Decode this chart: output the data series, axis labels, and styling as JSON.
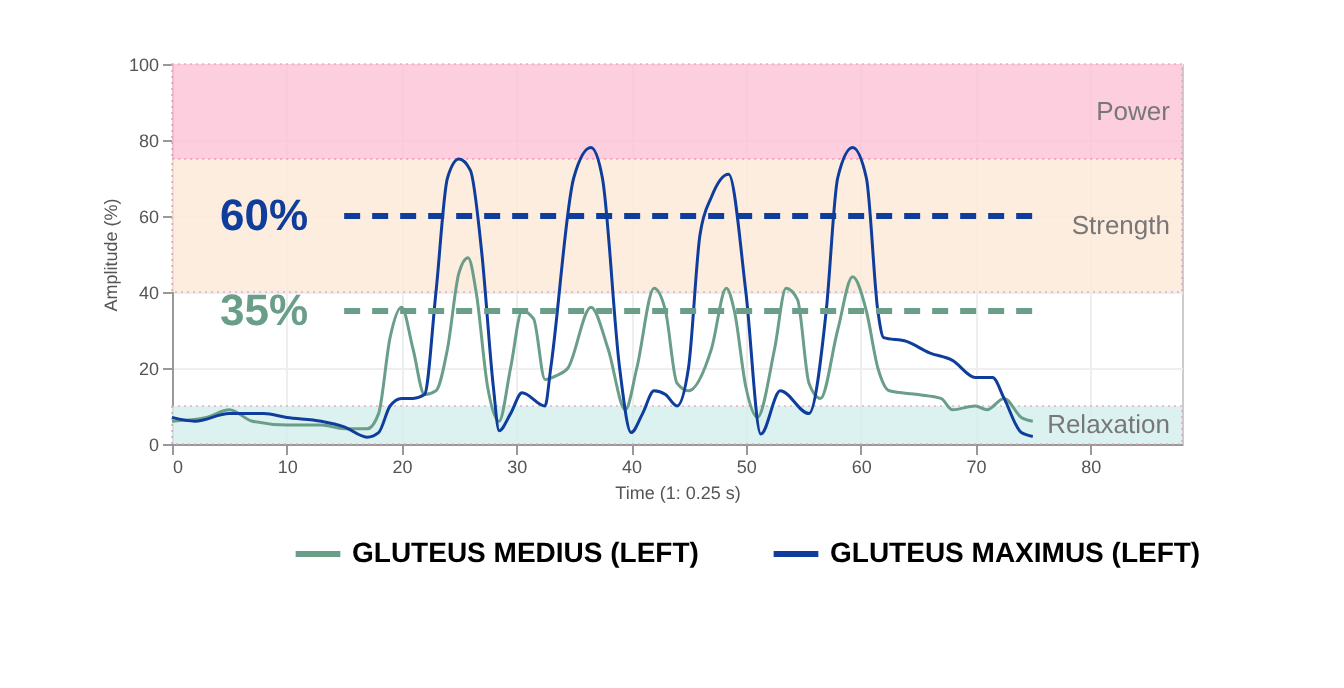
{
  "chart_data": {
    "type": "line",
    "xlabel": "Time (1: 0.25 s)",
    "ylabel": "Amplitude (%)",
    "xlim": [
      0,
      88
    ],
    "ylim": [
      0,
      100
    ],
    "xticks": [
      0,
      10,
      20,
      30,
      40,
      50,
      60,
      70,
      80
    ],
    "yticks": [
      0,
      20,
      40,
      60,
      80,
      100
    ],
    "grid": true,
    "legend": "bottom",
    "marker": "none",
    "series": [
      {
        "name": "GLUTEUS MEDIUS (LEFT)",
        "color": "#6a9e88",
        "line_style": "solid",
        "x": [
          0,
          3,
          5,
          7,
          10,
          13,
          15,
          17,
          18,
          19,
          20,
          21,
          22,
          23,
          24,
          25,
          25.8,
          26.5,
          27.5,
          28.5,
          29.5,
          30.5,
          31.5,
          32.5,
          33.5,
          34.5,
          36.5,
          38,
          39.5,
          40.5,
          42,
          43,
          44,
          45,
          47,
          48.3,
          49,
          50,
          51,
          52.5,
          53.5,
          54.5,
          55.5,
          56.5,
          58,
          59.3,
          60.5,
          61.5,
          62.5,
          65,
          67,
          68,
          70,
          71,
          72.5,
          74,
          75
        ],
        "values": [
          6,
          7,
          9,
          6,
          5,
          5,
          4,
          4,
          8,
          28,
          36,
          25,
          13,
          14,
          25,
          45,
          49,
          40,
          15,
          6,
          20,
          35,
          33,
          17,
          18,
          20,
          36,
          25,
          9,
          20,
          41,
          35,
          16,
          14,
          25,
          41,
          35,
          15,
          7,
          25,
          41,
          38,
          16,
          12,
          30,
          44,
          35,
          20,
          14,
          13,
          12,
          9,
          10,
          9,
          12,
          7,
          6
        ]
      },
      {
        "name": "GLUTEUS MAXIMUS (LEFT)",
        "color": "#0e3d9c",
        "line_style": "solid",
        "x": [
          0,
          2,
          5,
          8,
          10,
          13,
          15,
          17,
          18,
          19,
          20,
          21,
          22,
          23,
          24,
          25,
          26,
          27,
          28,
          28.5,
          29.5,
          30.5,
          32.5,
          33,
          35,
          36.5,
          37.5,
          39,
          40,
          41,
          42,
          43,
          44,
          45,
          46,
          47,
          48.5,
          50,
          51.3,
          53,
          55.5,
          57,
          58,
          59.3,
          60.5,
          61.5,
          62,
          64,
          66,
          68,
          70,
          71.5,
          72.5,
          74,
          75
        ],
        "values": [
          7,
          6,
          8,
          8,
          7,
          6,
          4.5,
          1.8,
          3,
          10,
          12,
          12,
          13,
          40,
          70,
          75,
          72,
          50,
          15,
          3.5,
          8,
          13.5,
          10,
          20,
          70,
          78,
          70,
          20,
          3,
          8,
          14,
          13,
          10,
          20,
          55,
          65,
          71,
          40,
          2.6,
          14,
          8,
          35,
          70,
          78,
          70,
          35,
          28,
          27,
          24,
          22,
          17.5,
          17.5,
          12,
          3,
          2
        ]
      },
      {
        "color": "#0e3d9c",
        "line_style": "dashed",
        "x": [
          15,
          75
        ],
        "values": [
          60,
          60
        ]
      },
      {
        "color": "#6a9e88",
        "line_style": "dashed",
        "x": [
          15,
          75
        ],
        "values": [
          35,
          35
        ]
      }
    ],
    "bands": [
      {
        "axis": "y",
        "from": 75,
        "to": 100,
        "label": "Power",
        "color": "#fcc6d9"
      },
      {
        "axis": "y",
        "from": 40,
        "to": 75,
        "label": "Strength",
        "color": "#fdebd9"
      },
      {
        "axis": "y",
        "from": 0,
        "to": 10,
        "label": "Relaxation",
        "color": "#d5f0ef"
      }
    ],
    "annotations": [
      "60%",
      "35%"
    ]
  }
}
